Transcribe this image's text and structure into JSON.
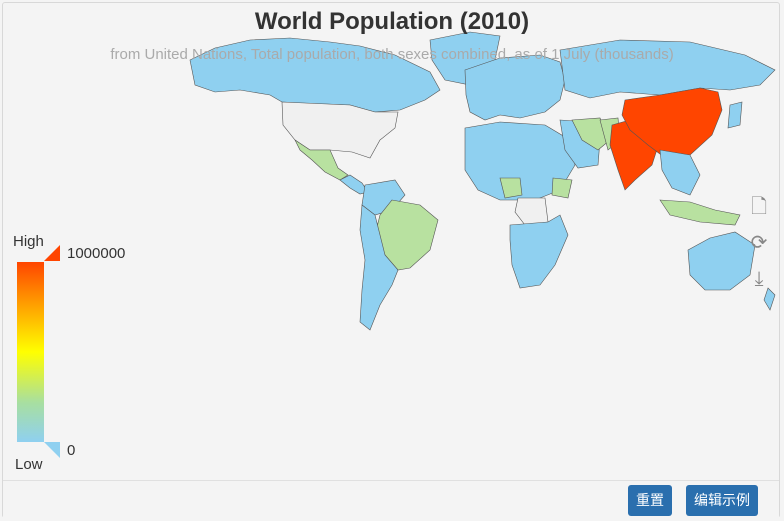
{
  "title": "World Population (2010)",
  "subtitle": "from United Nations, Total population, both sexes combined, as of 1 July (thousands)",
  "legend": {
    "high_label": "High",
    "low_label": "Low",
    "max_value": "1000000",
    "min_value": "0",
    "color_high": "#ff4500",
    "color_low": "#8fd0f0"
  },
  "colors": {
    "ocean": "#f4f4f4",
    "no_data": "#f0f0f0",
    "low": "#8fd0f0",
    "low_mid": "#b8e1a0",
    "high": "#ff4500",
    "border": "#555555"
  },
  "toolbox": {
    "data_view_icon": "document-icon",
    "restore_icon": "refresh-icon",
    "save_icon": "download-icon"
  },
  "buttons": {
    "reset": "重置",
    "edit_example": "编辑示例"
  }
}
